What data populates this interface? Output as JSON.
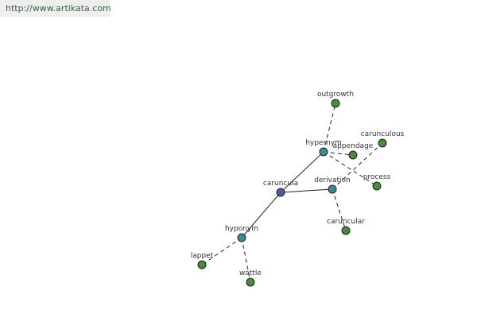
{
  "header": {
    "url": "http://www.artikata.com"
  },
  "nodes": [
    {
      "label": "caruncula"
    },
    {
      "label": "hypernym"
    },
    {
      "label": "derivation"
    },
    {
      "label": "hyponym"
    },
    {
      "label": "outgrowth"
    },
    {
      "label": "appendage"
    },
    {
      "label": "process"
    },
    {
      "label": "carunculous"
    },
    {
      "label": "caruncular"
    },
    {
      "label": "lappet"
    },
    {
      "label": "wattle"
    }
  ]
}
